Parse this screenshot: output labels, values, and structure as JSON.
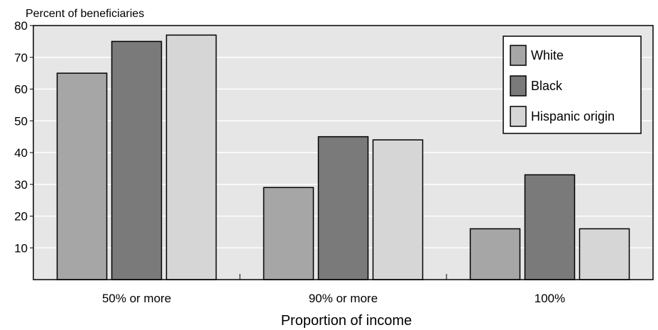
{
  "chart_data": {
    "type": "bar",
    "title": "",
    "ylabel": "Percent of beneficiaries",
    "xlabel": "Proportion of income",
    "categories": [
      "50% or more",
      "90% or more",
      "100%"
    ],
    "series": [
      {
        "name": "White",
        "values": [
          65,
          29,
          16
        ],
        "color": "#a6a6a6"
      },
      {
        "name": "Black",
        "values": [
          75,
          45,
          33
        ],
        "color": "#7a7a7a"
      },
      {
        "name": "Hispanic origin",
        "values": [
          77,
          44,
          16
        ],
        "color": "#d6d6d6"
      }
    ],
    "ylim": [
      0,
      80
    ],
    "yticks": [
      10,
      20,
      30,
      40,
      50,
      60,
      70,
      80
    ],
    "grid": true,
    "legend_position": "top-right",
    "colors": {
      "plot_background": "#e6e6e6",
      "gridline": "#ffffff",
      "bar_stroke": "#000000"
    }
  }
}
